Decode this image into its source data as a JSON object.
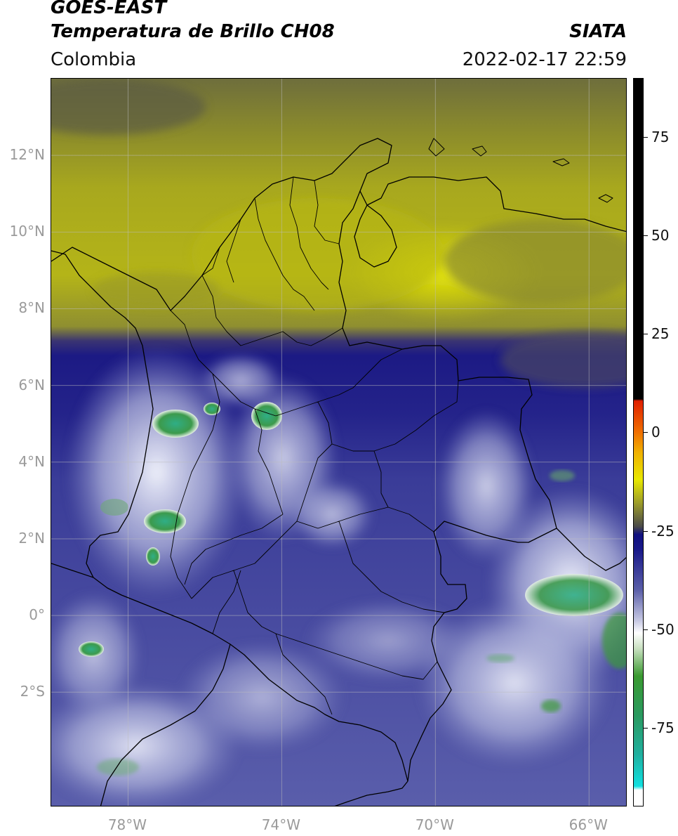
{
  "header": {
    "satellite": "GOES-EAST",
    "product": "Temperatura de Brillo CH08",
    "region": "Colombia",
    "source": "SIATA",
    "datetime": "2022-02-17 22:59"
  },
  "map": {
    "lon_range": [
      -80,
      -65
    ],
    "lat_range": [
      -5,
      14
    ],
    "lat_ticks": [
      {
        "value": 12,
        "label": "12°N"
      },
      {
        "value": 10,
        "label": "10°N"
      },
      {
        "value": 8,
        "label": "8°N"
      },
      {
        "value": 6,
        "label": "6°N"
      },
      {
        "value": 4,
        "label": "4°N"
      },
      {
        "value": 2,
        "label": "2°N"
      },
      {
        "value": 0,
        "label": "0°"
      },
      {
        "value": -2,
        "label": "2°S"
      }
    ],
    "lon_ticks": [
      {
        "value": -78,
        "label": "78°W"
      },
      {
        "value": -74,
        "label": "74°W"
      },
      {
        "value": -70,
        "label": "70°W"
      },
      {
        "value": -66,
        "label": "66°W"
      }
    ],
    "colors": {
      "warm_dry": "#a8a81e",
      "very_warm": "#e3e30a",
      "dark_warm": "#6e6e3c",
      "transition": "#1c1a84",
      "cold_moist": "#4448a0",
      "cloud_white": "#e4e6f4",
      "coldest_green": "#3aa86a",
      "border": "#000000"
    }
  },
  "colorbar": {
    "range": [
      -95,
      90
    ],
    "ticks": [
      {
        "value": 75,
        "label": "75"
      },
      {
        "value": 50,
        "label": "50"
      },
      {
        "value": 25,
        "label": "25"
      },
      {
        "value": 0,
        "label": "0"
      },
      {
        "value": -25,
        "label": "-25"
      },
      {
        "value": -50,
        "label": "-50"
      },
      {
        "value": -75,
        "label": "-75"
      }
    ]
  }
}
